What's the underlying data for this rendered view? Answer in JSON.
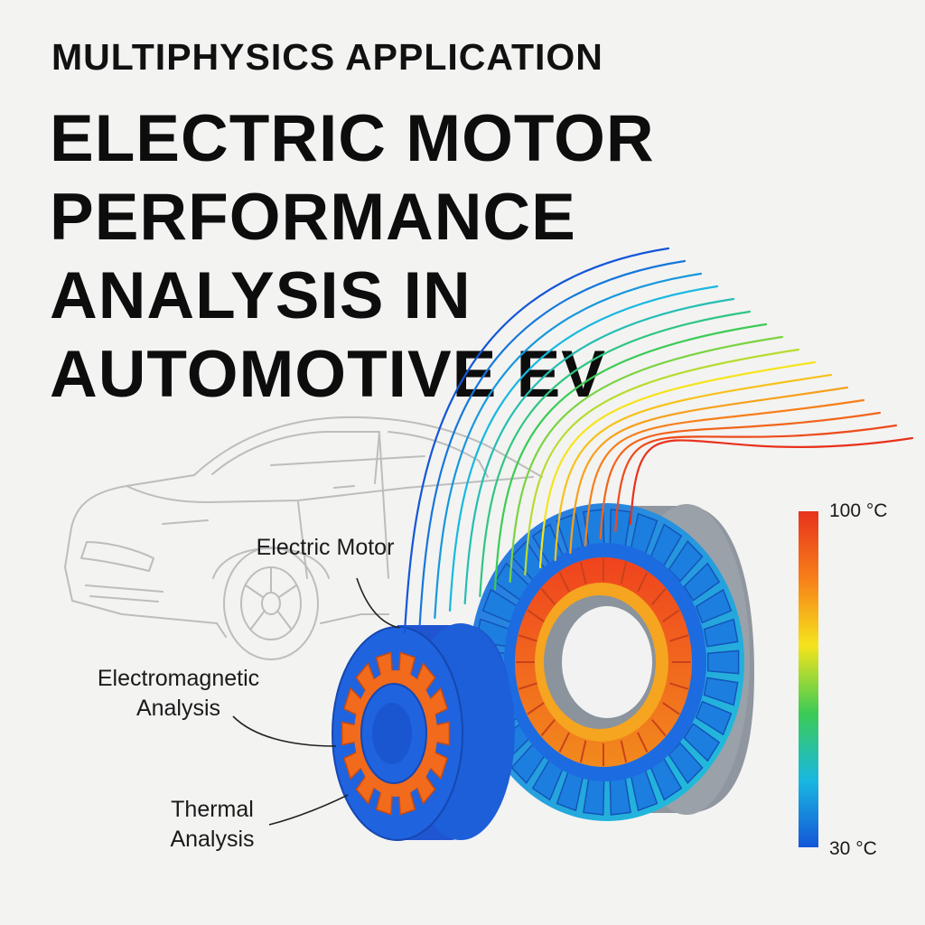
{
  "header": {
    "eyebrow": "MULTIPHYSICS APPLICATION",
    "title_lines": [
      "ELECTRIC MOTOR",
      "PERFORMANCE",
      "ANALYSIS IN",
      "AUTOMOTIVE EV"
    ]
  },
  "callouts": {
    "electric_motor": "Electric Motor",
    "electromagnetic": [
      "Electromagnetic",
      "Analysis"
    ],
    "thermal": [
      "Thermal",
      "Analysis"
    ]
  },
  "color_scale": {
    "max_label": "100 °C",
    "min_label": "30 °C",
    "gradient": [
      "#e8321c",
      "#f77f1a",
      "#f5e41c",
      "#3ccb55",
      "#19b8e0",
      "#1456d8"
    ]
  },
  "colors": {
    "background": "#f3f3f2",
    "motor_blue": "#1f63df",
    "hot_orange": "#f26a1b",
    "car_outline": "#b9b9b9"
  },
  "icons": {
    "car": "car-outline-icon",
    "motor": "motor-3d-icon",
    "streamlines": "heat-flow-lines-icon"
  }
}
